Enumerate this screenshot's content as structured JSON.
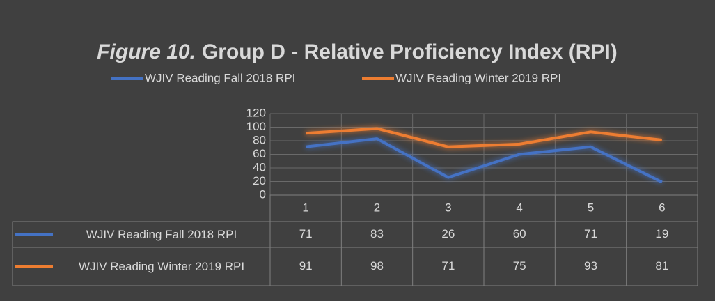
{
  "chart_data": {
    "type": "line",
    "title_prefix": "Figure 10.",
    "title": "Group D - Relative Proficiency Index (RPI)",
    "categories": [
      "1",
      "2",
      "3",
      "4",
      "5",
      "6"
    ],
    "series": [
      {
        "name": "WJIV Reading Fall 2018 RPI",
        "color": "#4472c4",
        "values": [
          71,
          83,
          26,
          60,
          71,
          19
        ]
      },
      {
        "name": "WJIV Reading Winter 2019 RPI",
        "color": "#ed7d31",
        "values": [
          91,
          98,
          71,
          75,
          93,
          81
        ]
      }
    ],
    "ylim": [
      0,
      120
    ],
    "yticks": [
      0,
      20,
      40,
      60,
      80,
      100,
      120
    ],
    "grid": true,
    "legend": "top",
    "data_table": true
  }
}
